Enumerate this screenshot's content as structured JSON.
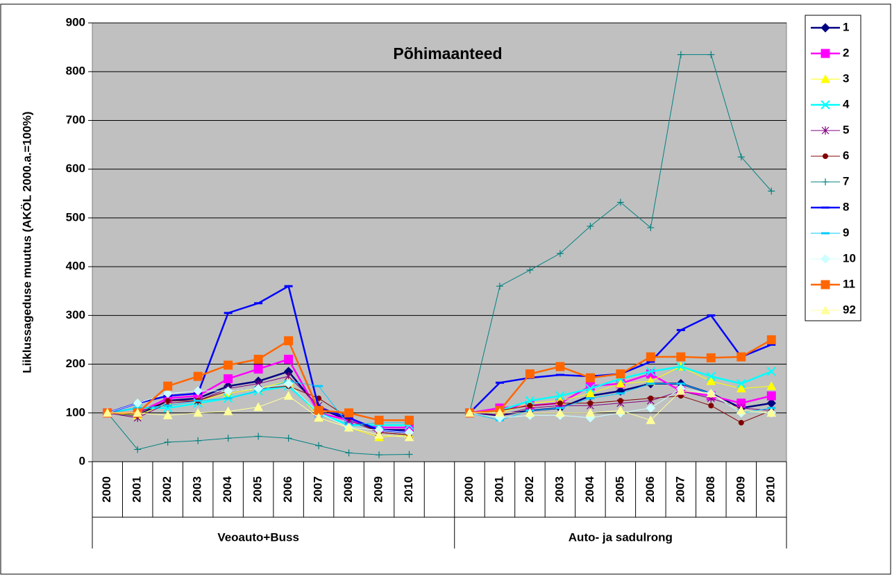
{
  "chart_data": {
    "type": "line",
    "title": "Põhimaanteed",
    "y_label": "Liiklussageduse muutus (AKÖL 2000.a.=100%)",
    "categories": [
      "2000",
      "2001",
      "2002",
      "2003",
      "2004",
      "2005",
      "2006",
      "2007",
      "2008",
      "2009",
      "2010",
      null,
      "2000",
      "2001",
      "2002",
      "2003",
      "2004",
      "2005",
      "2006",
      "2007",
      "2008",
      "2009",
      "2010"
    ],
    "category_groups": [
      "Veoauto+Buss",
      "Auto- ja sadulrong"
    ],
    "ylim": [
      0,
      900
    ],
    "yticks": [
      0,
      100,
      200,
      300,
      400,
      500,
      600,
      700,
      800,
      900
    ],
    "grid": true,
    "legend": "right",
    "series": [
      {
        "name": "1",
        "color": "#000080",
        "marker": "diamond",
        "line_width": 2.5,
        "values": [
          100,
          95,
          125,
          130,
          155,
          165,
          185,
          110,
          85,
          65,
          65,
          null,
          100,
          95,
          105,
          110,
          135,
          145,
          160,
          160,
          140,
          110,
          120
        ]
      },
      {
        "name": "2",
        "color": "#ff00ff",
        "marker": "square",
        "line_width": 2.5,
        "values": [
          100,
          100,
          130,
          135,
          170,
          190,
          210,
          100,
          85,
          70,
          70,
          null,
          100,
          110,
          115,
          120,
          155,
          160,
          180,
          145,
          135,
          120,
          135
        ]
      },
      {
        "name": "3",
        "color": "#ffff00",
        "marker": "triangle",
        "line_width": 1,
        "values": [
          100,
          95,
          120,
          125,
          140,
          150,
          165,
          90,
          70,
          50,
          55,
          null,
          100,
          100,
          120,
          125,
          140,
          160,
          165,
          195,
          165,
          150,
          155
        ]
      },
      {
        "name": "4",
        "color": "#00ffff",
        "marker": "x",
        "line_width": 2.5,
        "values": [
          100,
          110,
          110,
          120,
          130,
          145,
          155,
          100,
          75,
          75,
          75,
          null,
          100,
          105,
          125,
          135,
          150,
          170,
          185,
          195,
          175,
          160,
          185
        ]
      },
      {
        "name": "5",
        "color": "#800080",
        "marker": "asterisk",
        "line_width": 1,
        "values": [
          100,
          90,
          120,
          125,
          150,
          160,
          175,
          115,
          85,
          60,
          55,
          null,
          100,
          95,
          110,
          115,
          115,
          120,
          125,
          145,
          130,
          110,
          105
        ]
      },
      {
        "name": "6",
        "color": "#800000",
        "marker": "circle",
        "line_width": 1,
        "values": [
          100,
          100,
          125,
          125,
          145,
          150,
          155,
          130,
          90,
          60,
          55,
          null,
          100,
          105,
          115,
          120,
          120,
          125,
          130,
          135,
          115,
          80,
          105
        ]
      },
      {
        "name": "7",
        "color": "#008080",
        "marker": "plus",
        "line_width": 1,
        "values": [
          100,
          25,
          40,
          43,
          48,
          52,
          48,
          33,
          18,
          14,
          15,
          null,
          100,
          360,
          393,
          427,
          483,
          532,
          480,
          835,
          835,
          625,
          555
        ]
      },
      {
        "name": "8",
        "color": "#0000ff",
        "marker": "dash",
        "line_width": 2.5,
        "values": [
          100,
          120,
          135,
          140,
          305,
          325,
          360,
          110,
          90,
          65,
          60,
          null,
          100,
          162,
          172,
          178,
          175,
          180,
          205,
          270,
          300,
          215,
          240
        ]
      },
      {
        "name": "9",
        "color": "#00ccff",
        "marker": "dash",
        "line_width": 1,
        "values": [
          100,
          110,
          115,
          125,
          130,
          145,
          165,
          155,
          75,
          80,
          80,
          null,
          100,
          85,
          105,
          110,
          130,
          140,
          160,
          160,
          140,
          100,
          110
        ]
      },
      {
        "name": "10",
        "color": "#ccffff",
        "marker": "diamond",
        "line_width": 1,
        "values": [
          100,
          120,
          140,
          145,
          145,
          150,
          160,
          100,
          70,
          65,
          60,
          null,
          100,
          90,
          95,
          95,
          90,
          100,
          110,
          150,
          140,
          100,
          100
        ]
      },
      {
        "name": "11",
        "color": "#ff6600",
        "marker": "square",
        "line_width": 2.5,
        "values": [
          100,
          100,
          155,
          175,
          198,
          210,
          248,
          105,
          100,
          85,
          85,
          null,
          100,
          105,
          180,
          195,
          172,
          180,
          215,
          215,
          213,
          215,
          250
        ]
      },
      {
        "name": "92",
        "color": "#ffff99",
        "marker": "triangle",
        "line_width": 1,
        "values": [
          100,
          100,
          95,
          100,
          103,
          112,
          135,
          90,
          70,
          55,
          50,
          null,
          100,
          100,
          100,
          100,
          100,
          105,
          85,
          145,
          140,
          105,
          100
        ]
      }
    ]
  }
}
